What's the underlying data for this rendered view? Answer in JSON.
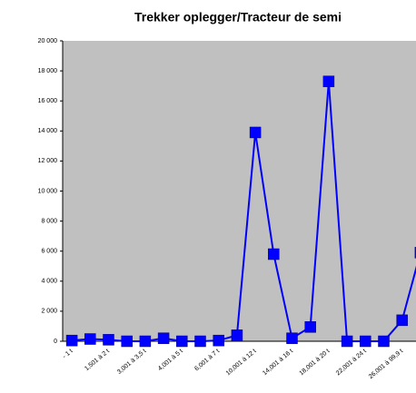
{
  "chart_data": {
    "type": "line",
    "title": "Trekker oplegger/Tracteur de semi",
    "categories": [
      "- 1 t",
      null,
      "1,501 à 2 t",
      null,
      "3,001 à 3,5 t",
      null,
      "4,001 à 5 t",
      null,
      "6,001 à 7 t",
      null,
      "10,001 à 12 t",
      null,
      "14,001 à 16 t",
      null,
      "18,001 à 20 t",
      null,
      "22,001 à 24 t",
      null,
      "26,001 à 99,9 t",
      null
    ],
    "series": [
      {
        "name": "Trekker oplegger/Tracteur de semi",
        "color": "#0000ff",
        "values": [
          50,
          150,
          100,
          0,
          0,
          200,
          0,
          0,
          50,
          400,
          13900,
          5800,
          200,
          950,
          17300,
          0,
          0,
          0,
          1400,
          5900
        ]
      }
    ],
    "ylim": [
      0,
      20000
    ],
    "yticks": [
      0,
      {
        "value": 2000,
        "label": "2 000"
      },
      {
        "value": 4000,
        "label": "4 000"
      },
      {
        "value": 6000,
        "label": "6 000"
      },
      {
        "value": 8000,
        "label": "8 000"
      },
      {
        "value": 10000,
        "label": "10 000"
      },
      {
        "value": 12000,
        "label": "12 000"
      },
      {
        "value": 14000,
        "label": "14 000"
      },
      {
        "value": 16000,
        "label": "16 000"
      },
      {
        "value": 18000,
        "label": "18 000"
      },
      {
        "value": 20000,
        "label": "20 000"
      }
    ],
    "grid": false
  }
}
